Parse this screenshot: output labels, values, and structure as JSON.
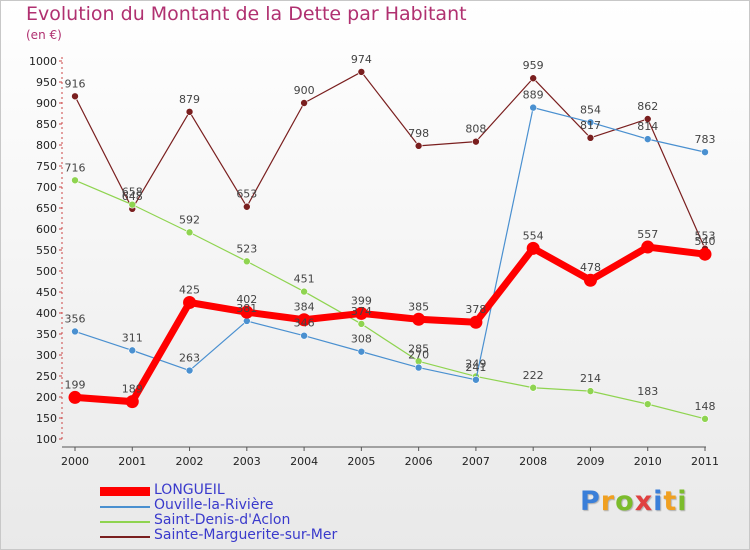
{
  "title": "Evolution du Montant de la Dette par Habitant",
  "unit": "(en €)",
  "logo": {
    "text": "Proxiti",
    "colors": [
      "#3a7fd9",
      "#f0a020",
      "#7cbc2c",
      "#e04040",
      "#3a7fd9",
      "#f0a020",
      "#7cbc2c"
    ]
  },
  "chart_data": {
    "type": "line",
    "x": [
      2000,
      2001,
      2002,
      2003,
      2004,
      2005,
      2006,
      2007,
      2008,
      2009,
      2010,
      2011
    ],
    "ylim": [
      100,
      1000
    ],
    "yticks": [
      100,
      150,
      200,
      250,
      300,
      350,
      400,
      450,
      500,
      550,
      600,
      650,
      700,
      750,
      800,
      850,
      900,
      950,
      1000
    ],
    "grid": false,
    "legend_position": "bottom-left",
    "series": [
      {
        "name": "Sainte-Marguerite-sur-Mer",
        "color": "#7a1f1f",
        "values": [
          916,
          648,
          879,
          653,
          900,
          974,
          798,
          808,
          959,
          817,
          862,
          553
        ]
      },
      {
        "name": "Saint-Denis-d'Aclon",
        "color": "#8fd450",
        "values": [
          716,
          658,
          592,
          523,
          451,
          374,
          285,
          249,
          222,
          214,
          183,
          148
        ]
      },
      {
        "name": "Ouville-la-Rivière",
        "color": "#4a90d0",
        "values": [
          356,
          311,
          263,
          381,
          346,
          308,
          270,
          241,
          889,
          854,
          814,
          783
        ]
      },
      {
        "name": "LONGUEIL",
        "color": "#ff0000",
        "values": [
          199,
          189,
          425,
          402,
          384,
          399,
          385,
          378,
          554,
          478,
          557,
          540
        ]
      }
    ],
    "legend_order": [
      "LONGUEIL",
      "Ouville-la-Rivière",
      "Saint-Denis-d'Aclon",
      "Sainte-Marguerite-sur-Mer"
    ]
  }
}
